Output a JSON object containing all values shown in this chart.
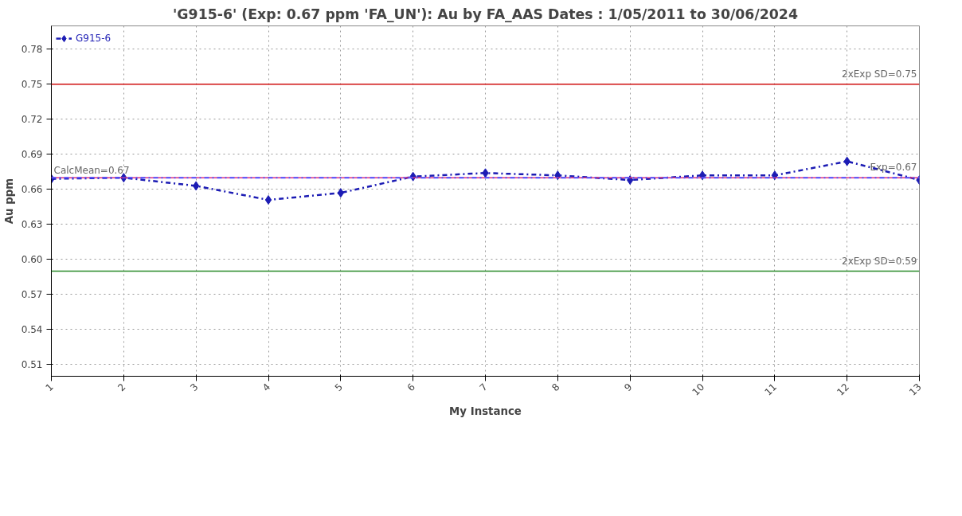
{
  "chart_data": {
    "type": "line",
    "title": "'G915-6' (Exp: 0.67 ppm 'FA_UN'): Au by FA_AAS Dates : 1/05/2011 to 30/06/2024",
    "xlabel": "My Instance",
    "ylabel": "Au ppm",
    "x": [
      1,
      2,
      3,
      4,
      5,
      6,
      7,
      8,
      9,
      10,
      11,
      12,
      13
    ],
    "series": [
      {
        "name": "G915-6",
        "color": "#1c1cb4",
        "values": [
          0.669,
          0.67,
          0.663,
          0.651,
          0.657,
          0.671,
          0.674,
          0.672,
          0.668,
          0.672,
          0.672,
          0.684,
          0.668
        ]
      }
    ],
    "xlim": [
      1,
      13
    ],
    "ylim": [
      0.5,
      0.8
    ],
    "xticks": [
      1,
      2,
      3,
      4,
      5,
      6,
      7,
      8,
      9,
      10,
      11,
      12,
      13
    ],
    "yticks": [
      0.51,
      0.54,
      0.57,
      {
        "value": 0.6,
        "label": "0.60"
      },
      0.63,
      0.66,
      0.69,
      0.72,
      0.75,
      0.78
    ],
    "ref_lines": [
      {
        "axis": "y",
        "value": 0.75,
        "label": "2xExp SD=0.75",
        "color": "#d01010",
        "line_style": "solid"
      },
      {
        "axis": "y",
        "value": 0.59,
        "label": "2xExp SD=0.59",
        "color": "#2a8a2a",
        "line_style": "solid"
      },
      {
        "axis": "y",
        "value": 0.67,
        "label": "Exp=0.67",
        "color": "#e0307a",
        "line_style": "solid"
      },
      {
        "axis": "y",
        "value": 0.67,
        "label": "CalcMean=0.67",
        "color": "#5050ff",
        "line_style": "dashed"
      }
    ],
    "grid": true,
    "legend": "top left",
    "marker": "diamond",
    "line_style": "dashed"
  }
}
